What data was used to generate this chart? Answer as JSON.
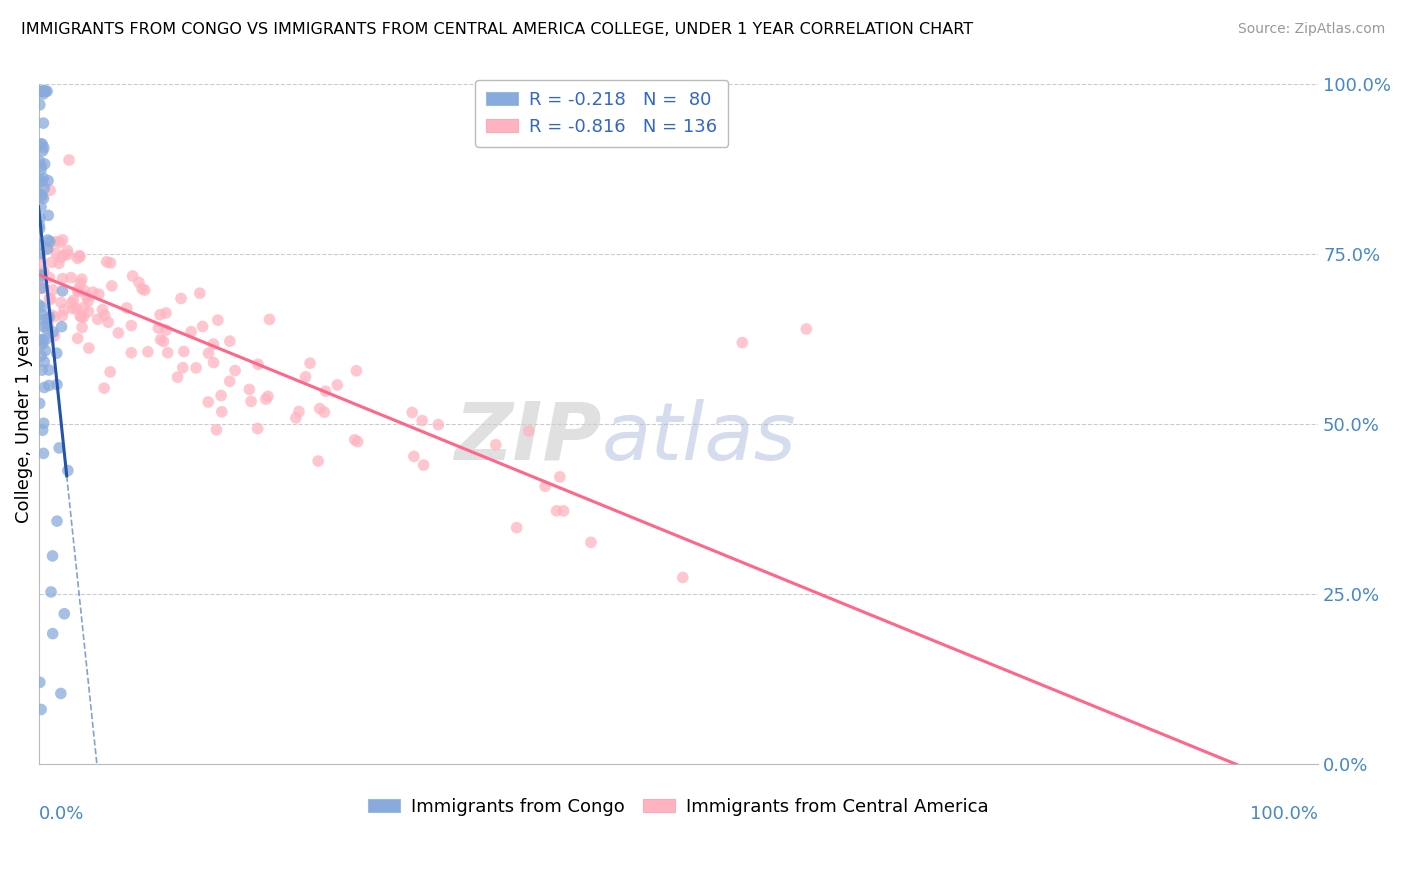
{
  "title": "IMMIGRANTS FROM CONGO VS IMMIGRANTS FROM CENTRAL AMERICA COLLEGE, UNDER 1 YEAR CORRELATION CHART",
  "source": "Source: ZipAtlas.com",
  "ylabel": "College, Under 1 year",
  "yticks": [
    0.0,
    0.25,
    0.5,
    0.75,
    1.0
  ],
  "ytick_labels": [
    "0.0%",
    "25.0%",
    "50.0%",
    "75.0%",
    "100.0%"
  ],
  "congo_color": "#88AADD",
  "central_color": "#FFB3C1",
  "congo_line_color": "#2255AA",
  "central_line_color": "#FF6688",
  "grid_color": "#CCCCCC",
  "background_color": "#FFFFFF",
  "congo_intercept": 0.82,
  "congo_slope": -18.0,
  "central_intercept": 0.72,
  "central_slope": -0.77,
  "congo_N": 80,
  "central_N": 136
}
